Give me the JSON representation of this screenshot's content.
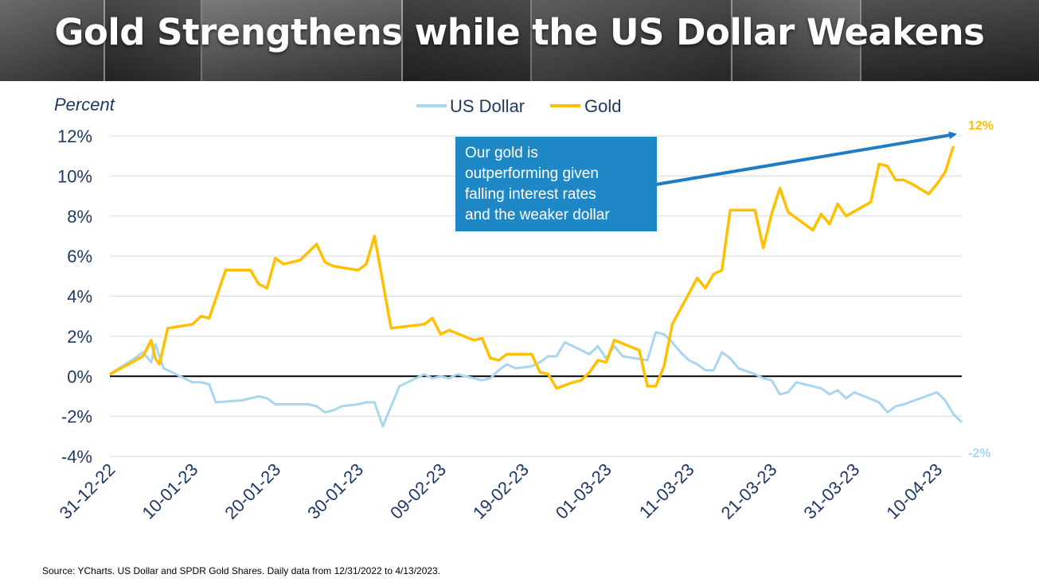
{
  "title": "Gold Strengthens while the US Dollar Weakens",
  "source": "Source: YCharts. US Dollar and SPDR Gold Shares. Daily data from 12/31/2022 to 4/13/2023.",
  "colors": {
    "dollar": "#a8d6ee",
    "gold": "#ffc000",
    "axis_text": "#1f3864",
    "callout_bg": "#1e88c7",
    "arrow": "#1e7bc4",
    "grid": "#d9d9d9"
  },
  "chart_data": {
    "type": "line",
    "ylabel": "Percent",
    "ylim": [
      -4,
      12
    ],
    "yticks": [
      12,
      10,
      8,
      6,
      4,
      2,
      0,
      -2,
      -4
    ],
    "ytick_labels": [
      "12%",
      "10%",
      "8%",
      "6%",
      "4%",
      "2%",
      "0%",
      "-2%",
      "-4%"
    ],
    "xlim": [
      0,
      103
    ],
    "xticks": [
      0,
      10,
      20,
      30,
      40,
      50,
      60,
      70,
      80,
      90,
      100
    ],
    "xtick_labels": [
      "31-12-22",
      "10-01-23",
      "20-01-23",
      "30-01-23",
      "09-02-23",
      "19-02-23",
      "01-03-23",
      "11-03-23",
      "21-03-23",
      "31-03-23",
      "10-04-23"
    ],
    "legend": {
      "position": "top-center",
      "entries": [
        "US Dollar",
        "Gold"
      ]
    },
    "grid": true,
    "series": [
      {
        "name": "US Dollar",
        "color": "#a8d6ee",
        "points": [
          [
            0,
            0.1
          ],
          [
            3,
            0.9
          ],
          [
            4,
            1.2
          ],
          [
            5,
            0.7
          ],
          [
            5.5,
            1.6
          ],
          [
            6.5,
            0.4
          ],
          [
            8,
            0.1
          ],
          [
            9,
            -0.1
          ],
          [
            10,
            -0.3
          ],
          [
            11,
            -0.3
          ],
          [
            12,
            -0.4
          ],
          [
            12.8,
            -1.3
          ],
          [
            16,
            -1.2
          ],
          [
            17,
            -1.1
          ],
          [
            18,
            -1.0
          ],
          [
            19,
            -1.1
          ],
          [
            20,
            -1.4
          ],
          [
            21,
            -1.4
          ],
          [
            24,
            -1.4
          ],
          [
            25,
            -1.5
          ],
          [
            26,
            -1.8
          ],
          [
            27,
            -1.7
          ],
          [
            28,
            -1.5
          ],
          [
            30,
            -1.4
          ],
          [
            31,
            -1.3
          ],
          [
            32,
            -1.3
          ],
          [
            33,
            -2.5
          ],
          [
            35,
            -0.5
          ],
          [
            36,
            -0.3
          ],
          [
            37,
            -0.1
          ],
          [
            38,
            0.1
          ],
          [
            39,
            -0.1
          ],
          [
            40,
            0.0
          ],
          [
            41,
            -0.1
          ],
          [
            42,
            0.1
          ],
          [
            44,
            -0.1
          ],
          [
            45,
            -0.2
          ],
          [
            46,
            -0.1
          ],
          [
            47,
            0.3
          ],
          [
            48,
            0.6
          ],
          [
            49,
            0.4
          ],
          [
            51,
            0.5
          ],
          [
            52,
            0.7
          ],
          [
            53,
            1.0
          ],
          [
            54,
            1.0
          ],
          [
            55,
            1.7
          ],
          [
            57,
            1.3
          ],
          [
            58,
            1.1
          ],
          [
            59,
            1.5
          ],
          [
            60,
            0.9
          ],
          [
            61,
            1.5
          ],
          [
            62,
            1.0
          ],
          [
            65,
            0.8
          ],
          [
            66,
            2.2
          ],
          [
            67,
            2.1
          ],
          [
            68,
            1.7
          ],
          [
            69,
            1.2
          ],
          [
            70,
            0.8
          ],
          [
            71,
            0.6
          ],
          [
            72,
            0.3
          ],
          [
            73,
            0.3
          ],
          [
            74,
            1.2
          ],
          [
            75,
            0.9
          ],
          [
            76,
            0.4
          ],
          [
            78,
            0.1
          ],
          [
            79,
            -0.1
          ],
          [
            80,
            -0.2
          ],
          [
            81,
            -0.9
          ],
          [
            82,
            -0.8
          ],
          [
            83,
            -0.3
          ],
          [
            84,
            -0.4
          ],
          [
            86,
            -0.6
          ],
          [
            87,
            -0.9
          ],
          [
            88,
            -0.7
          ],
          [
            89,
            -1.1
          ],
          [
            90,
            -0.8
          ],
          [
            93,
            -1.3
          ],
          [
            94,
            -1.8
          ],
          [
            95,
            -1.5
          ],
          [
            96,
            -1.4
          ],
          [
            100,
            -0.8
          ],
          [
            101,
            -1.2
          ],
          [
            102,
            -1.9
          ],
          [
            103,
            -2.3
          ]
        ],
        "end_label": "-2%"
      },
      {
        "name": "Gold",
        "color": "#ffc000",
        "points": [
          [
            0,
            0.1
          ],
          [
            4,
            1.0
          ],
          [
            5,
            1.8
          ],
          [
            5.5,
            0.9
          ],
          [
            6,
            0.6
          ],
          [
            7,
            2.4
          ],
          [
            10,
            2.6
          ],
          [
            11,
            3.0
          ],
          [
            12,
            2.9
          ],
          [
            14,
            5.3
          ],
          [
            17,
            5.3
          ],
          [
            18,
            4.6
          ],
          [
            19,
            4.4
          ],
          [
            20,
            5.9
          ],
          [
            21,
            5.6
          ],
          [
            23,
            5.8
          ],
          [
            25,
            6.6
          ],
          [
            26,
            5.7
          ],
          [
            27,
            5.5
          ],
          [
            30,
            5.3
          ],
          [
            31,
            5.6
          ],
          [
            32,
            7.0
          ],
          [
            34,
            2.4
          ],
          [
            38,
            2.6
          ],
          [
            39,
            2.9
          ],
          [
            40,
            2.1
          ],
          [
            41,
            2.3
          ],
          [
            44,
            1.8
          ],
          [
            45,
            1.9
          ],
          [
            46,
            0.9
          ],
          [
            47,
            0.8
          ],
          [
            48,
            1.1
          ],
          [
            51,
            1.1
          ],
          [
            52,
            0.2
          ],
          [
            53,
            0.1
          ],
          [
            54,
            -0.6
          ],
          [
            56,
            -0.3
          ],
          [
            57,
            -0.2
          ],
          [
            58,
            0.2
          ],
          [
            59,
            0.8
          ],
          [
            60,
            0.7
          ],
          [
            61,
            1.8
          ],
          [
            64,
            1.3
          ],
          [
            65,
            -0.5
          ],
          [
            66,
            -0.5
          ],
          [
            67,
            0.5
          ],
          [
            68,
            2.6
          ],
          [
            71,
            4.9
          ],
          [
            72,
            4.4
          ],
          [
            73,
            5.1
          ],
          [
            74,
            5.3
          ],
          [
            75,
            8.3
          ],
          [
            78,
            8.3
          ],
          [
            79,
            6.4
          ],
          [
            80,
            8.1
          ],
          [
            81,
            9.4
          ],
          [
            82,
            8.2
          ],
          [
            85,
            7.3
          ],
          [
            86,
            8.1
          ],
          [
            87,
            7.6
          ],
          [
            88,
            8.6
          ],
          [
            89,
            8.0
          ],
          [
            92,
            8.7
          ],
          [
            93,
            10.6
          ],
          [
            94,
            10.5
          ],
          [
            95,
            9.8
          ],
          [
            96,
            9.8
          ],
          [
            97,
            9.6
          ],
          [
            99,
            9.1
          ],
          [
            100,
            9.6
          ],
          [
            101,
            10.2
          ],
          [
            102,
            11.5
          ]
        ],
        "end_label": "12%"
      }
    ],
    "annotation": {
      "text": [
        "Our gold is",
        "outperforming given",
        "falling interest rates",
        "and the weaker dollar"
      ]
    }
  }
}
